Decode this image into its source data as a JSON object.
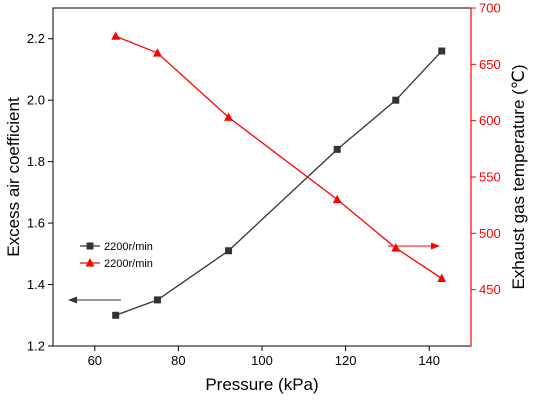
{
  "chart_data": {
    "type": "line",
    "xlabel": "Pressure (kPa)",
    "ylabel_left": "Excess air coefficient",
    "ylabel_right": "Exhaust gas temperature (℃)",
    "xlim": [
      50,
      150
    ],
    "ylim_left": [
      1.2,
      2.3
    ],
    "ylim_right": [
      400,
      700
    ],
    "x_ticks": [
      60,
      80,
      100,
      120,
      140
    ],
    "y_ticks_left": [
      1.2,
      1.4,
      1.6,
      1.8,
      2.0,
      2.2
    ],
    "y_ticks_right": [
      450,
      500,
      550,
      600,
      650,
      700
    ],
    "grid": false,
    "legend_position": "center-left",
    "series": [
      {
        "name": "2200r/min",
        "axis": "left",
        "marker": "square",
        "color": "#333333",
        "x": [
          65,
          75,
          92,
          118,
          132,
          143
        ],
        "y": [
          1.3,
          1.35,
          1.51,
          1.84,
          2.0,
          2.16
        ]
      },
      {
        "name": "2200r/min",
        "axis": "right",
        "marker": "triangle",
        "color": "#ff0000",
        "x": [
          65,
          75,
          92,
          118,
          132,
          143
        ],
        "y": [
          675,
          660,
          603,
          530,
          487,
          460
        ]
      }
    ],
    "axis_indicators": [
      {
        "direction": "left",
        "color": "#333333"
      },
      {
        "direction": "right",
        "color": "#ff0000"
      }
    ]
  }
}
